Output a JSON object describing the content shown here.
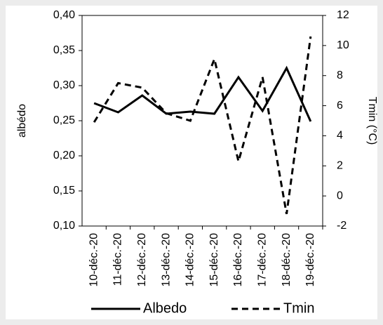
{
  "chart_data": {
    "type": "line",
    "y_label": "albédo",
    "y2_label": "Tmin (°C)",
    "categories": [
      "10-déc.-20",
      "11-déc.-20",
      "12-déc.-20",
      "13-déc.-20",
      "14-déc.-20",
      "15-déc.-20",
      "16-déc.-20",
      "17-déc.-20",
      "18-déc.-20",
      "19-déc.-20"
    ],
    "series": [
      {
        "name": "Albedo",
        "color": "#000000",
        "line_style": "solid",
        "values": [
          0.275,
          0.262,
          0.286,
          0.26,
          0.263,
          0.26,
          0.312,
          0.264,
          0.325,
          0.249
        ]
      },
      {
        "name": "Tmin",
        "color": "#000000",
        "line_style": "dashed",
        "axis": "y2",
        "values": [
          4.9,
          7.5,
          7.2,
          5.5,
          5.0,
          9.1,
          2.3,
          7.9,
          -1.2,
          10.6
        ]
      }
    ],
    "ylim": [
      0.1,
      0.4
    ],
    "yticks": [
      {
        "value": 0.1,
        "label": "0,10"
      },
      {
        "value": 0.15,
        "label": "0,15"
      },
      {
        "value": 0.2,
        "label": "0,20"
      },
      {
        "value": 0.25,
        "label": "0,25"
      },
      {
        "value": 0.3,
        "label": "0,30"
      },
      {
        "value": 0.35,
        "label": "0,35"
      },
      {
        "value": 0.4,
        "label": "0,40"
      }
    ],
    "y2lim": [
      -2,
      12
    ],
    "y2ticks": [
      -2,
      0,
      2,
      4,
      6,
      8,
      10,
      12
    ],
    "legend": "bottom"
  }
}
